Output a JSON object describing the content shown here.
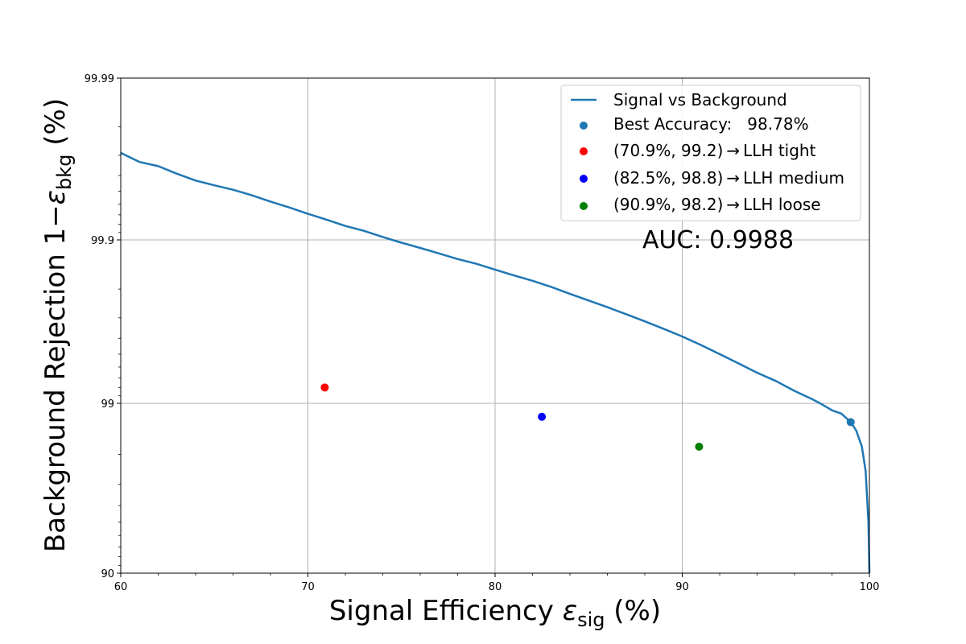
{
  "chart_data": {
    "type": "line",
    "xlabel_main": "Signal Efficiency ",
    "xlabel_symbol": "ε",
    "xlabel_sub": "sig",
    "xlabel_unit": " (%)",
    "ylabel_main": "Background Rejection 1−",
    "ylabel_symbol": "ε",
    "ylabel_sub": "bkg",
    "ylabel_unit": " (%)",
    "xlim": [
      60,
      100
    ],
    "yscale": "logit-like (rejection)",
    "ylim": [
      90,
      99.99
    ],
    "x_ticks": [
      60,
      70,
      80,
      90,
      100
    ],
    "x_tick_labels": [
      "60",
      "70",
      "80",
      "90",
      "100"
    ],
    "y_ticks": [
      90,
      99,
      99.9,
      99.99
    ],
    "y_tick_labels": [
      "90",
      "99",
      "99.9",
      "99.99"
    ],
    "grid": true,
    "legend_position": "top-right",
    "annotation": "AUC: 0.9988",
    "series": [
      {
        "name": "Signal vs Background",
        "color": "#1f77b4",
        "x": [
          60,
          61,
          62,
          63,
          64,
          65,
          66,
          67,
          68,
          69,
          70,
          71,
          72,
          73,
          74,
          75,
          76,
          77,
          78,
          79,
          80,
          81,
          82,
          83,
          84,
          85,
          86,
          87,
          88,
          89,
          90,
          91,
          92,
          93,
          94,
          95,
          96,
          97,
          97.5,
          98,
          98.5,
          99,
          99.3,
          99.6,
          99.8,
          99.95,
          100
        ],
        "y": [
          99.971,
          99.967,
          99.965,
          99.961,
          99.957,
          99.954,
          99.951,
          99.947,
          99.942,
          99.937,
          99.931,
          99.925,
          99.918,
          99.912,
          99.904,
          99.896,
          99.888,
          99.879,
          99.869,
          99.86,
          99.848,
          99.835,
          99.822,
          99.806,
          99.786,
          99.765,
          99.742,
          99.715,
          99.685,
          99.65,
          99.61,
          99.56,
          99.5,
          99.43,
          99.35,
          99.27,
          99.16,
          99.05,
          98.98,
          98.9,
          98.85,
          98.71,
          98.55,
          98.2,
          97.5,
          95.0,
          90.0
        ]
      }
    ],
    "points": [
      {
        "label": "Best Accuracy:   98.78%",
        "color": "#1f77b4",
        "x": 99.0,
        "y": 98.71
      },
      {
        "label": "(70.9%, 99.2) → LLH tight",
        "color": "#ff0000",
        "x": 70.9,
        "y": 99.2
      },
      {
        "label": "(82.5%, 98.8) → LLH medium",
        "color": "#0000ff",
        "x": 82.5,
        "y": 98.8
      },
      {
        "label": "(90.9%, 98.2) → LLH loose",
        "color": "#008000",
        "x": 90.9,
        "y": 98.2
      }
    ]
  }
}
